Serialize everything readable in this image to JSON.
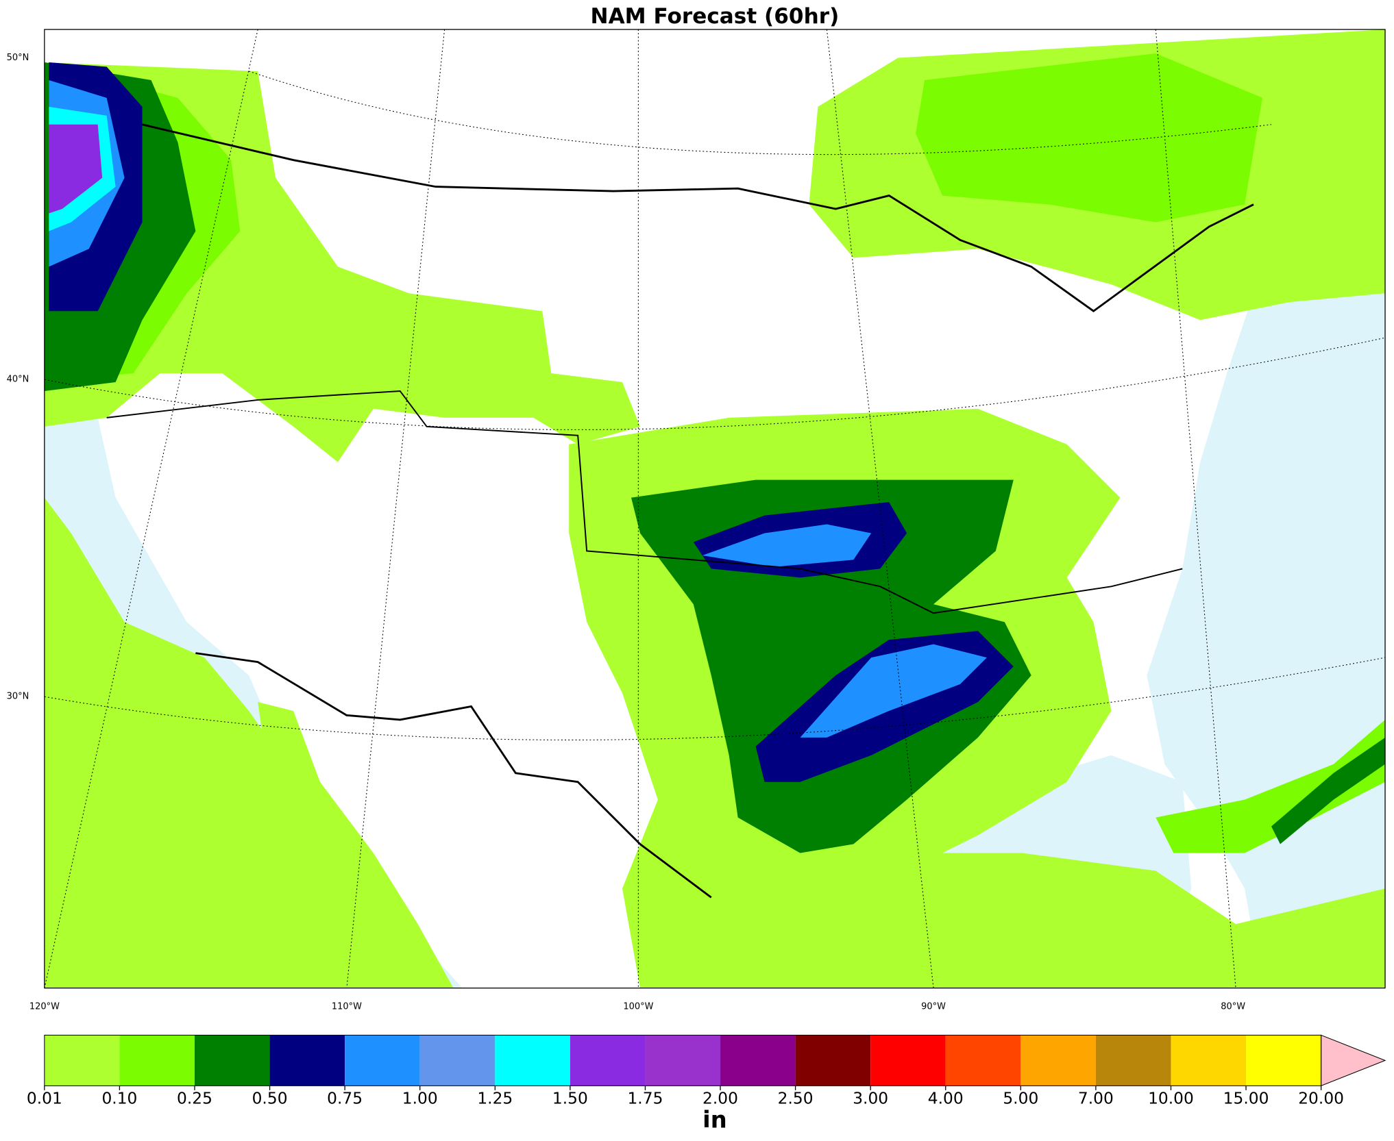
{
  "title": "NAM Forecast (60hr)",
  "graticule": {
    "lat": [
      "50°N",
      "40°N",
      "30°N"
    ],
    "lon": [
      "120°W",
      "110°W",
      "100°W",
      "90°W",
      "80°W"
    ]
  },
  "colorbar": {
    "units": "in",
    "levels": [
      {
        "value": 0.01,
        "label": "0.01"
      },
      {
        "value": 0.1,
        "label": "0.10"
      },
      {
        "value": 0.25,
        "label": "0.25"
      },
      {
        "value": 0.5,
        "label": "0.50"
      },
      {
        "value": 0.75,
        "label": "0.75"
      },
      {
        "value": 1,
        "label": "1.00"
      },
      {
        "value": 1.25,
        "label": "1.25"
      },
      {
        "value": 1.5,
        "label": "1.50"
      },
      {
        "value": 1.75,
        "label": "1.75"
      },
      {
        "value": 2,
        "label": "2.00"
      },
      {
        "value": 2.5,
        "label": "2.50"
      },
      {
        "value": 3,
        "label": "3.00"
      },
      {
        "value": 4,
        "label": "4.00"
      },
      {
        "value": 5,
        "label": "5.00"
      },
      {
        "value": 7,
        "label": "7.00"
      },
      {
        "value": 10,
        "label": "10.00"
      },
      {
        "value": 15,
        "label": "15.00"
      },
      {
        "value": 20,
        "label": "20.00"
      }
    ],
    "colors": [
      "#adff2f",
      "#7cfc00",
      "#008000",
      "#000080",
      "#1e90ff",
      "#6495ed",
      "#00ffff",
      "#8a2be2",
      "#9932cc",
      "#8b008b",
      "#800000",
      "#ff0000",
      "#ff4500",
      "#ffa500",
      "#b8860b",
      "#ffd700",
      "#ffff00"
    ],
    "extend_color": "#ffc0cb"
  }
}
